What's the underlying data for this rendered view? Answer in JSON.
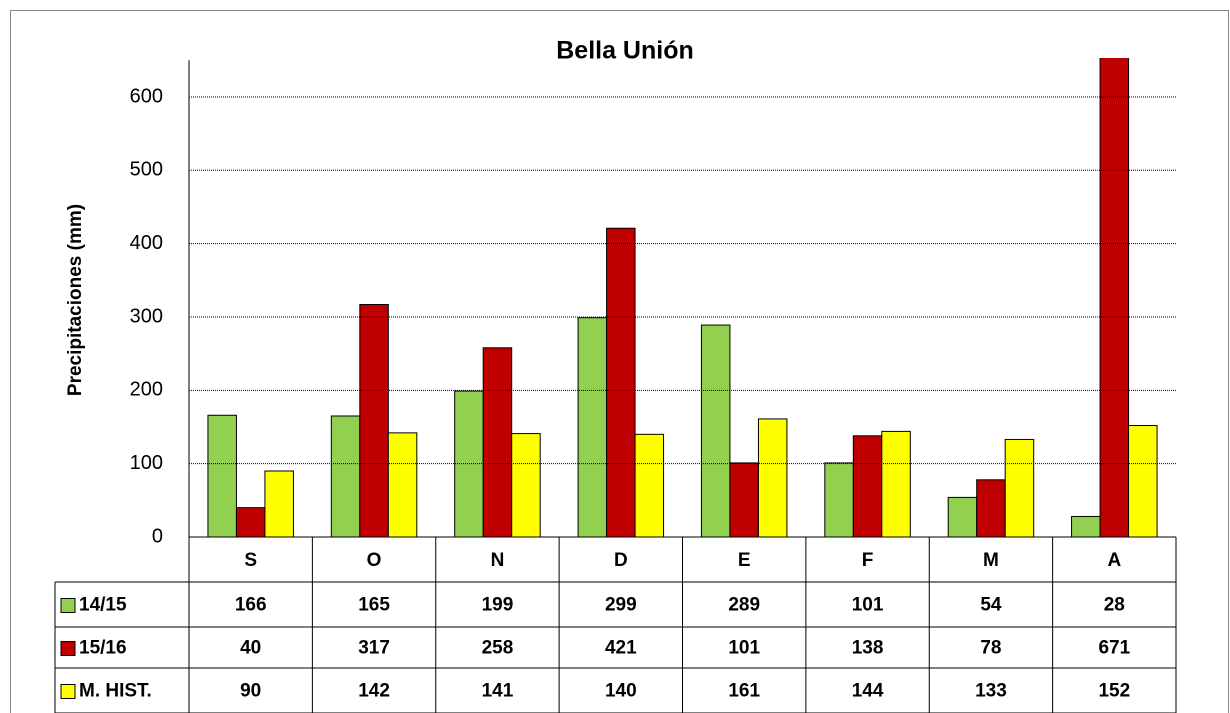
{
  "chart_data": {
    "type": "bar",
    "title": "Bella Unión",
    "y_label": "Precipitaciones (mm)",
    "categories": [
      "S",
      "O",
      "N",
      "D",
      "E",
      "F",
      "M",
      "A"
    ],
    "series": [
      {
        "name": "14/15",
        "color": "#92d050",
        "values": [
          166,
          165,
          199,
          299,
          289,
          101,
          54,
          28
        ]
      },
      {
        "name": "15/16",
        "color": "#c00000",
        "values": [
          40,
          317,
          258,
          421,
          101,
          138,
          78,
          671
        ]
      },
      {
        "name": "M. HIST.",
        "color": "#ffff00",
        "values": [
          90,
          142,
          141,
          140,
          161,
          144,
          133,
          152
        ]
      }
    ],
    "ylim": [
      0,
      650
    ],
    "yticks": [
      0,
      100,
      200,
      300,
      400,
      500,
      600
    ],
    "grid": true
  }
}
